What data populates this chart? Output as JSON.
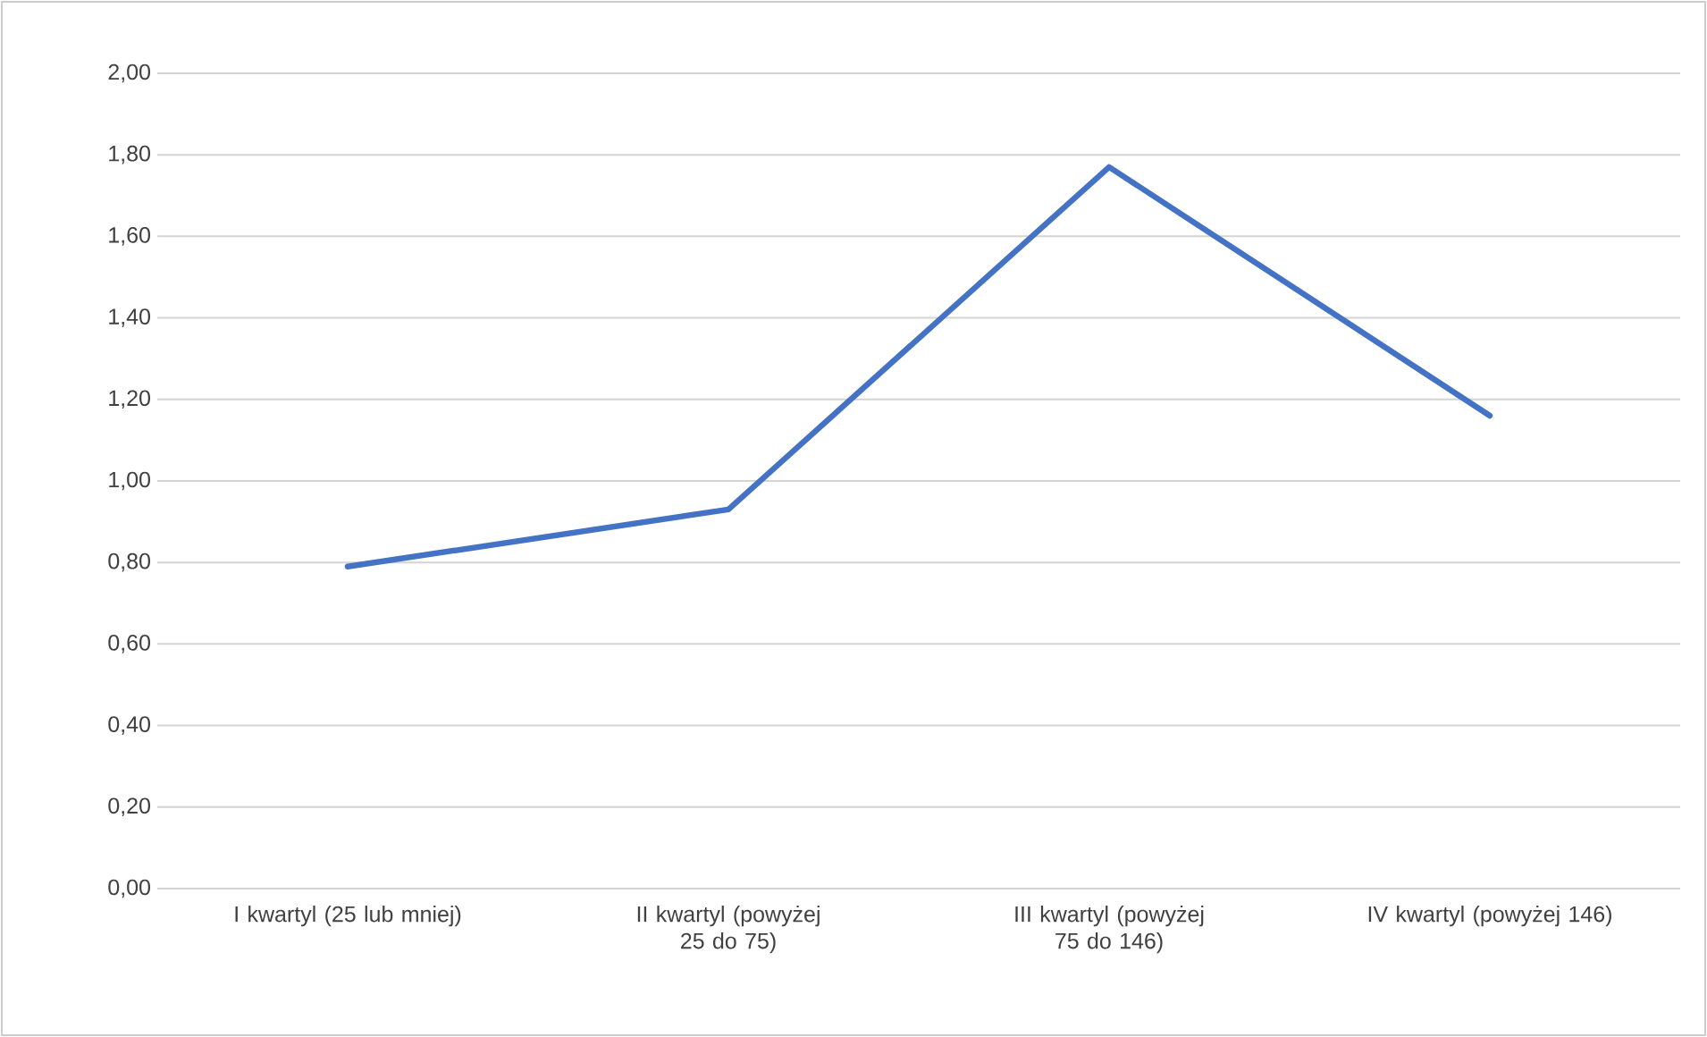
{
  "chart_data": {
    "type": "line",
    "categories": [
      "I kwartyl (25 lub mniej)",
      "II kwartyl (powyżej 25 do 75)",
      "III kwartyl (powyżej 75 do 146)",
      "IV kwartyl (powyżej 146)"
    ],
    "series": [
      {
        "color": "#4472c4",
        "values": [
          0.79,
          0.93,
          1.77,
          1.16
        ]
      }
    ],
    "ylim": [
      0,
      2
    ],
    "yticks": [
      {
        "value": 0,
        "label": "0,00"
      },
      {
        "value": 0.2,
        "label": "0,20"
      },
      {
        "value": 0.4,
        "label": "0,40"
      },
      {
        "value": 0.6,
        "label": "0,60"
      },
      {
        "value": 0.8,
        "label": "0,80"
      },
      {
        "value": 1,
        "label": "1,00"
      },
      {
        "value": 1.2,
        "label": "1,20"
      },
      {
        "value": 1.4,
        "label": "1,40"
      },
      {
        "value": 1.6,
        "label": "1,60"
      },
      {
        "value": 1.8,
        "label": "1,80"
      },
      {
        "value": 2,
        "label": "2,00"
      }
    ],
    "grid": "y",
    "marker": "none",
    "line_style": "solid"
  }
}
